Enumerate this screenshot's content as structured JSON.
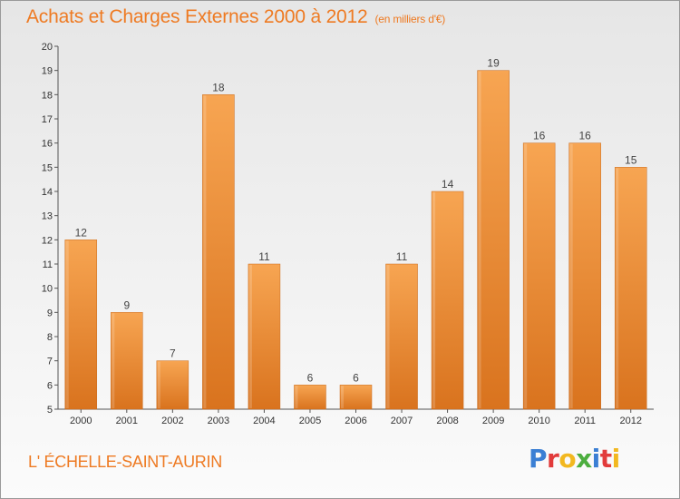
{
  "header": {
    "title": "Achats et Charges Externes 2000 à 2012",
    "subtitle": "(en milliers d'€)"
  },
  "footer": {
    "commune": "L' ÉCHELLE-SAINT-AURIN",
    "logo_text": "Proxiti",
    "logo_colors": [
      "#3b7fd4",
      "#e23b3b",
      "#f2b820",
      "#4cae3f",
      "#3b7fd4",
      "#e23b3b",
      "#f2b820"
    ]
  },
  "chart_data": {
    "type": "bar",
    "title": "Achats et Charges Externes 2000 à 2012",
    "subtitle": "(en milliers d'€)",
    "xlabel": "",
    "ylabel": "",
    "categories": [
      "2000",
      "2001",
      "2002",
      "2003",
      "2004",
      "2005",
      "2006",
      "2007",
      "2008",
      "2009",
      "2010",
      "2011",
      "2012"
    ],
    "values": [
      12,
      9,
      7,
      18,
      11,
      6,
      6,
      11,
      14,
      19,
      16,
      16,
      15
    ],
    "ylim": [
      5,
      20
    ],
    "yticks": [
      5,
      6,
      7,
      8,
      9,
      10,
      11,
      12,
      13,
      14,
      15,
      16,
      17,
      18,
      19,
      20
    ],
    "grid": false,
    "legend": "none",
    "colors": {
      "bar_light": "#f7a552",
      "bar_dark": "#d9731e",
      "axis": "#555555",
      "text": "#333333",
      "accent": "#ee7a22"
    }
  }
}
